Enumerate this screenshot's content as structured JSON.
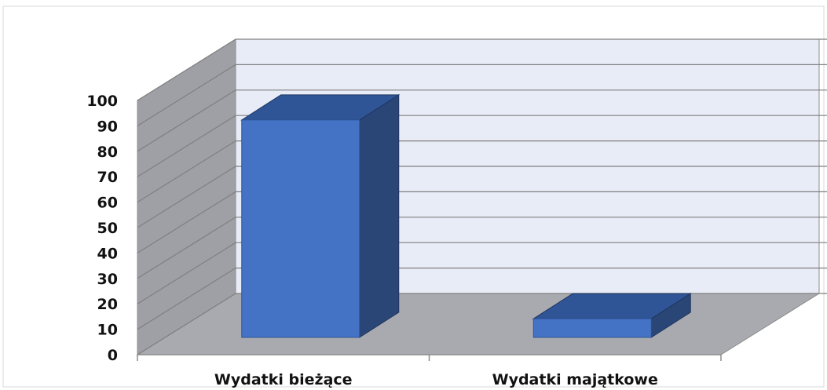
{
  "chart_data": {
    "type": "bar",
    "style": "3d-column",
    "categories": [
      "Wydatki bieżące",
      "Wydatki majątkowe"
    ],
    "values": [
      93,
      8
    ],
    "ylim": [
      0,
      100
    ],
    "yticks": [
      "0",
      "10",
      "20",
      "30",
      "40",
      "50",
      "60",
      "70",
      "80",
      "90",
      "100"
    ],
    "grid": true,
    "legend": "none",
    "colors": {
      "bar_front": "#4472c4",
      "bar_top": "#2f5597",
      "bar_side": "#2a4677",
      "back_wall": "#e8ecf7",
      "side_wall": "#9fa0a6",
      "floor": "#a9aaaf",
      "gridline": "#7f7f7f"
    }
  }
}
